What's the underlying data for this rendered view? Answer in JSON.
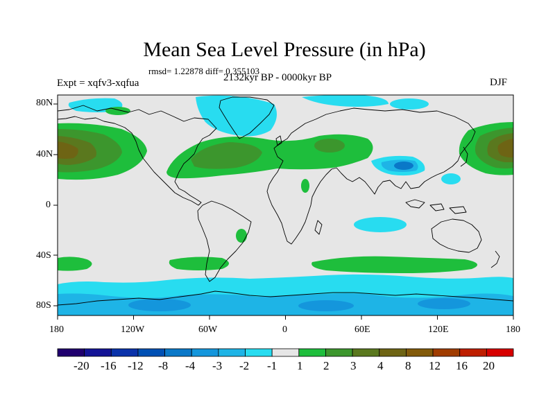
{
  "title": "Mean Sea Level Pressure (in hPa)",
  "stats": "rmsd= 1.22878 diff= 0.355103",
  "period": "2132kyr BP - 0000kyr BP",
  "experiment": "Expt = xqfv3-xqfua",
  "season": "DJF",
  "map": {
    "projection": "cylindrical equidistant",
    "lon_range": [
      -180,
      180
    ],
    "lat_range": [
      -90,
      90
    ],
    "lat_labels": [
      "80N",
      "40N",
      "0",
      "40S",
      "80S"
    ],
    "lon_labels": [
      "180",
      "120W",
      "60W",
      "0",
      "60E",
      "120E",
      "180"
    ],
    "background_color": "#e6e6e6",
    "anomaly_regions": [
      {
        "name": "north-pacific-high-west",
        "level": "8",
        "lon": [
          -180,
          -148
        ],
        "lat": [
          18,
          58
        ]
      },
      {
        "name": "north-pacific-high-east",
        "level": "8",
        "lon": [
          138,
          180
        ],
        "lat": [
          20,
          55
        ]
      },
      {
        "name": "north-atlantic-eurasia-band",
        "level": "2",
        "lon": [
          -75,
          60
        ],
        "lat": [
          25,
          55
        ]
      },
      {
        "name": "tibet-low",
        "level": "-3",
        "lon": [
          82,
          108
        ],
        "lat": [
          25,
          42
        ]
      },
      {
        "name": "southern-ocean-low",
        "level": "-2",
        "lon": [
          -180,
          180
        ],
        "lat": [
          -90,
          -58
        ]
      },
      {
        "name": "south-pacific-band",
        "level": "2",
        "lon": [
          -180,
          -150
        ],
        "lat": [
          -52,
          -40
        ]
      },
      {
        "name": "south-indian-band",
        "level": "2",
        "lon": [
          40,
          150
        ],
        "lat": [
          -50,
          -38
        ]
      }
    ]
  },
  "colorbar": {
    "colors": [
      "#20006e",
      "#141496",
      "#0a32aa",
      "#0050b4",
      "#0a78c8",
      "#1496dc",
      "#1eb4e6",
      "#28dcf0",
      "#e6e6e6",
      "#1ebe3c",
      "#3c962d",
      "#5a781e",
      "#6e6414",
      "#825a0a",
      "#a03c00",
      "#be1e00",
      "#d70000"
    ],
    "labels": [
      "-20",
      "-16",
      "-12",
      "-8",
      "-4",
      "-3",
      "-2",
      "-1",
      "1",
      "2",
      "3",
      "4",
      "8",
      "12",
      "16",
      "20"
    ]
  }
}
